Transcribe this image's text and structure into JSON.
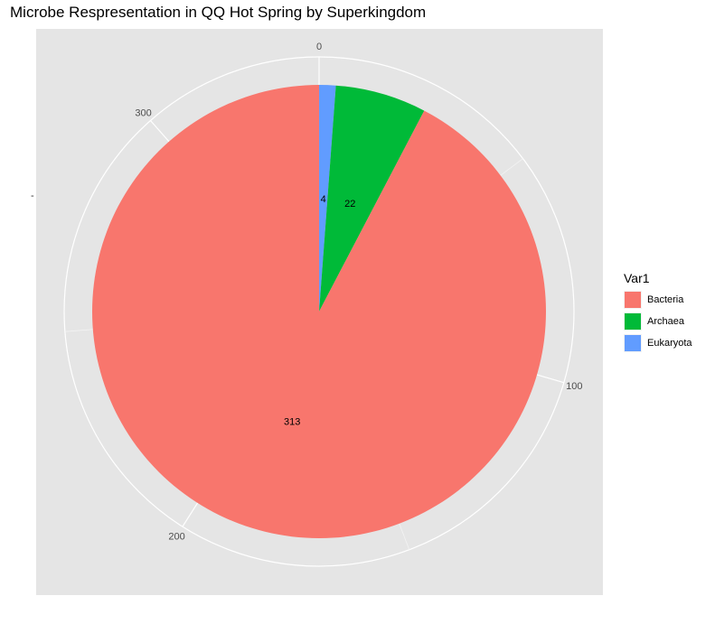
{
  "title": "Microbe Respresentation in QQ Hot Spring by Superkingdom",
  "y_tick_label": "-",
  "legend_title": "Var1",
  "chart_data": {
    "type": "pie",
    "title": "Microbe Respresentation in QQ Hot Spring by Superkingdom",
    "categories": [
      "Bacteria",
      "Archaea",
      "Eukaryota"
    ],
    "values": [
      313,
      22,
      4
    ],
    "colors": [
      "#F8766D",
      "#00BA38",
      "#619CFF"
    ],
    "slice_order": [
      "Eukaryota",
      "Archaea",
      "Bacteria"
    ],
    "theta_ticks": [
      0,
      100,
      200,
      300
    ],
    "theta_tick_labels": [
      "0",
      "100",
      "200",
      "300"
    ],
    "legend_title": "Var1",
    "legend_position": "right",
    "grid": true
  }
}
